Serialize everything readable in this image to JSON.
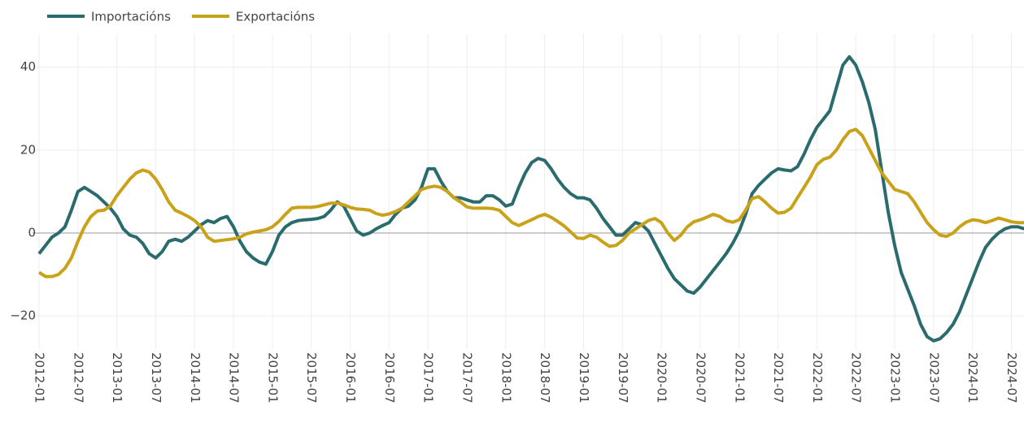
{
  "chart_data": {
    "type": "line",
    "x": [
      "2012-01",
      "2012-02",
      "2012-03",
      "2012-04",
      "2012-05",
      "2012-06",
      "2012-07",
      "2012-08",
      "2012-09",
      "2012-10",
      "2012-11",
      "2012-12",
      "2013-01",
      "2013-02",
      "2013-03",
      "2013-04",
      "2013-05",
      "2013-06",
      "2013-07",
      "2013-08",
      "2013-09",
      "2013-10",
      "2013-11",
      "2013-12",
      "2014-01",
      "2014-02",
      "2014-03",
      "2014-04",
      "2014-05",
      "2014-06",
      "2014-07",
      "2014-08",
      "2014-09",
      "2014-10",
      "2014-11",
      "2014-12",
      "2015-01",
      "2015-02",
      "2015-03",
      "2015-04",
      "2015-05",
      "2015-06",
      "2015-07",
      "2015-08",
      "2015-09",
      "2015-10",
      "2015-11",
      "2015-12",
      "2016-01",
      "2016-02",
      "2016-03",
      "2016-04",
      "2016-05",
      "2016-06",
      "2016-07",
      "2016-08",
      "2016-09",
      "2016-10",
      "2016-11",
      "2016-12",
      "2017-01",
      "2017-02",
      "2017-03",
      "2017-04",
      "2017-05",
      "2017-06",
      "2017-07",
      "2017-08",
      "2017-09",
      "2017-10",
      "2017-11",
      "2017-12",
      "2018-01",
      "2018-02",
      "2018-03",
      "2018-04",
      "2018-05",
      "2018-06",
      "2018-07",
      "2018-08",
      "2018-09",
      "2018-10",
      "2018-11",
      "2018-12",
      "2019-01",
      "2019-02",
      "2019-03",
      "2019-04",
      "2019-05",
      "2019-06",
      "2019-07",
      "2019-08",
      "2019-09",
      "2019-10",
      "2019-11",
      "2019-12",
      "2020-01",
      "2020-02",
      "2020-03",
      "2020-04",
      "2020-05",
      "2020-06",
      "2020-07",
      "2020-08",
      "2020-09",
      "2020-10",
      "2020-11",
      "2020-12",
      "2021-01",
      "2021-02",
      "2021-03",
      "2021-04",
      "2021-05",
      "2021-06",
      "2021-07",
      "2021-08",
      "2021-09",
      "2021-10",
      "2021-11",
      "2021-12",
      "2022-01",
      "2022-02",
      "2022-03",
      "2022-04",
      "2022-05",
      "2022-06",
      "2022-07",
      "2022-08",
      "2022-09",
      "2022-10",
      "2022-11",
      "2022-12",
      "2023-01",
      "2023-02",
      "2023-03",
      "2023-04",
      "2023-05",
      "2023-06",
      "2023-07",
      "2023-08",
      "2023-09",
      "2023-10",
      "2023-11",
      "2023-12",
      "2024-01",
      "2024-02",
      "2024-03",
      "2024-04",
      "2024-05",
      "2024-06",
      "2024-07",
      "2024-08",
      "2024-09"
    ],
    "xticks": [
      "2012-01",
      "2012-07",
      "2013-01",
      "2013-07",
      "2014-01",
      "2014-07",
      "2015-01",
      "2015-07",
      "2016-01",
      "2016-07",
      "2017-01",
      "2017-07",
      "2018-01",
      "2018-07",
      "2019-01",
      "2019-07",
      "2020-01",
      "2020-07",
      "2021-01",
      "2021-07",
      "2022-01",
      "2022-07",
      "2023-01",
      "2023-07",
      "2024-01",
      "2024-07"
    ],
    "series": [
      {
        "name": "Importacións",
        "color": "#2a6b6e",
        "values": [
          -5,
          -3,
          -1,
          0,
          1.5,
          5.5,
          10,
          11,
          10,
          9,
          7.5,
          6,
          4,
          1,
          -0.5,
          -1,
          -2.5,
          -5,
          -6,
          -4.5,
          -2,
          -1.5,
          -2,
          -1,
          0.5,
          2,
          3,
          2.5,
          3.5,
          4,
          1.5,
          -2,
          -4.5,
          -6,
          -7,
          -7.5,
          -4.5,
          -0.5,
          1.5,
          2.5,
          3,
          3.2,
          3.3,
          3.5,
          4,
          5.5,
          7.5,
          6.5,
          3.5,
          0.5,
          -0.5,
          0,
          1,
          1.8,
          2.5,
          4.5,
          6,
          6.5,
          8,
          11,
          15.5,
          15.5,
          12.5,
          10,
          8.5,
          8.5,
          8,
          7.5,
          7.5,
          9,
          9,
          8,
          6.5,
          7,
          11,
          14.5,
          17,
          18,
          17.5,
          15.5,
          13,
          11,
          9.5,
          8.5,
          8.5,
          8,
          6,
          3.5,
          1.5,
          -0.5,
          -0.5,
          1,
          2.5,
          2,
          0.5,
          -2.5,
          -5.5,
          -8.5,
          -11,
          -12.5,
          -14,
          -14.5,
          -13,
          -11,
          -9,
          -7,
          -5,
          -2.5,
          0.5,
          4.5,
          9.5,
          11.5,
          13,
          14.5,
          15.5,
          15.2,
          15,
          16,
          19,
          22.5,
          25.5,
          27.5,
          29.5,
          35,
          40.5,
          42.5,
          40.5,
          36.5,
          31.5,
          25,
          15,
          5,
          -3,
          -9.5,
          -13.5,
          -17.5,
          -22,
          -25,
          -26,
          -25.5,
          -24,
          -22,
          -19,
          -15,
          -11,
          -7,
          -3.5,
          -1.5,
          0,
          1,
          1.5,
          1.5,
          1
        ]
      },
      {
        "name": "Exportacións",
        "color": "#c9a21a",
        "values": [
          -9.5,
          -10.5,
          -10.5,
          -10,
          -8.5,
          -6,
          -2,
          1.5,
          4,
          5.3,
          5.5,
          6.5,
          9,
          11,
          13,
          14.5,
          15.2,
          14.7,
          13,
          10.5,
          7.5,
          5.5,
          4.8,
          4,
          3,
          1.5,
          -1,
          -2,
          -1.8,
          -1.6,
          -1.4,
          -1,
          -0.2,
          0.2,
          0.5,
          0.8,
          1.5,
          2.8,
          4.5,
          6,
          6.2,
          6.2,
          6.2,
          6.4,
          6.8,
          7.2,
          7.2,
          6.8,
          6.2,
          5.8,
          5.7,
          5.5,
          4.7,
          4.3,
          4.6,
          5.2,
          6,
          7.5,
          9,
          10.5,
          11,
          11.3,
          11,
          10,
          8.5,
          7.5,
          6.3,
          6,
          6,
          6,
          5.9,
          5.5,
          4,
          2.5,
          1.8,
          2.5,
          3.2,
          4,
          4.5,
          3.8,
          2.8,
          1.7,
          0.3,
          -1.2,
          -1.3,
          -0.5,
          -1,
          -2.2,
          -3.2,
          -3,
          -1.8,
          0,
          1,
          2,
          3,
          3.5,
          2.5,
          0,
          -1.8,
          -0.5,
          1.5,
          2.7,
          3.2,
          3.8,
          4.5,
          4,
          3,
          2.6,
          3.2,
          5.5,
          8.3,
          8.8,
          7.5,
          6,
          4.8,
          5,
          6,
          8.5,
          11,
          13.5,
          16.5,
          17.8,
          18.3,
          20,
          22.5,
          24.5,
          25,
          23.5,
          20.5,
          17.5,
          14.5,
          12.5,
          10.5,
          10,
          9.5,
          7.5,
          5,
          2.5,
          0.8,
          -0.5,
          -0.8,
          0,
          1.5,
          2.6,
          3.2,
          3,
          2.5,
          3,
          3.6,
          3.2,
          2.7,
          2.5,
          2.5
        ]
      }
    ],
    "ylim": [
      -28,
      47
    ],
    "yticks": [
      {
        "value": -20,
        "label": "−20"
      },
      0,
      20,
      40
    ],
    "grid": true
  }
}
